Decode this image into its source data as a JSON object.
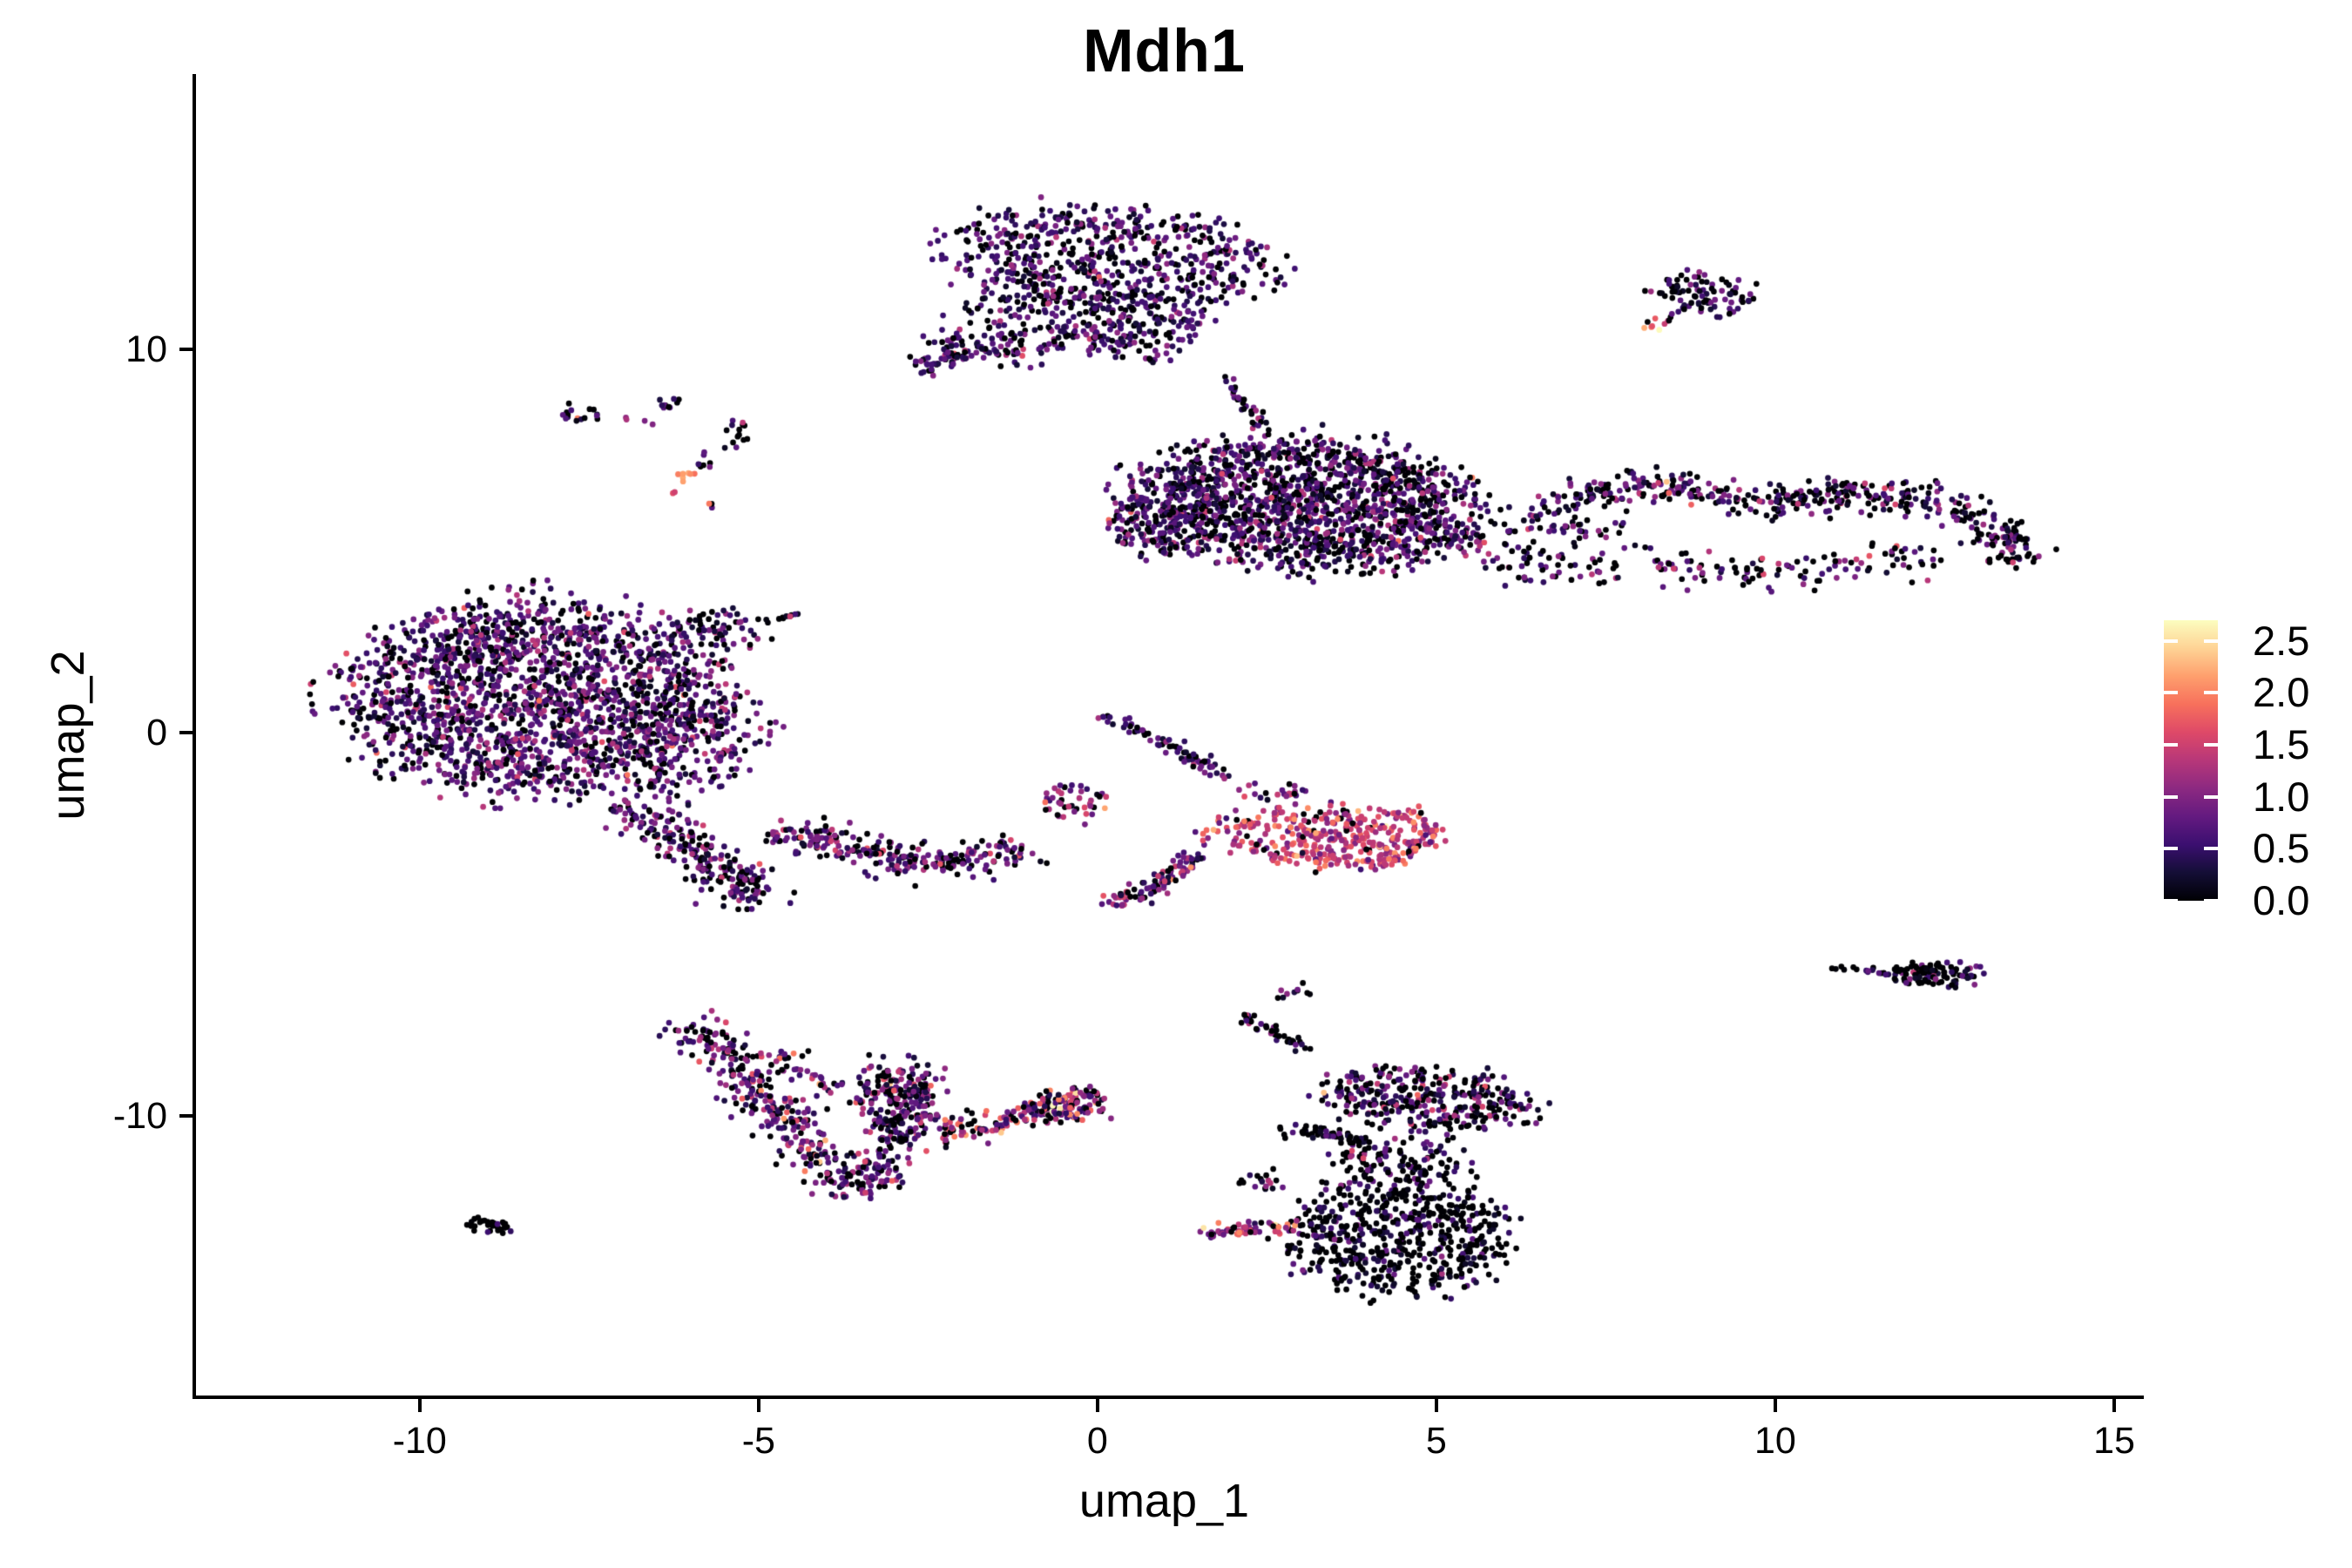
{
  "chart_data": {
    "type": "scatter",
    "title": "Mdh1",
    "xlabel": "umap_1",
    "ylabel": "umap_2",
    "xlim": [
      -13.3,
      15.27
    ],
    "ylim": [
      -17.3,
      17.18
    ],
    "xticks": [
      -10,
      -5,
      0,
      5,
      10,
      15
    ],
    "yticks": [
      -10,
      0,
      10
    ],
    "grid": false,
    "point_radius_px": 3.35,
    "legend": {
      "position": "right",
      "ticks": [
        0.0,
        0.5,
        1.0,
        1.5,
        2.0,
        2.5
      ],
      "vmin": 0.0,
      "vmax": 2.7,
      "colormap": "magma",
      "colormap_stops": [
        "#000004",
        "#140e36",
        "#3b0f70",
        "#641a80",
        "#8c2981",
        "#b73779",
        "#de4968",
        "#f7705c",
        "#fe9f6d",
        "#fed395",
        "#fcfdbf"
      ]
    },
    "axis_color": "#000000",
    "background_color": "#ffffff",
    "clusters": [
      {
        "id": "top-center-core",
        "kind": "blob",
        "cx": 0.2,
        "cy": 12.35,
        "rx": 2.35,
        "ry": 1.35,
        "rot": -8,
        "n": 620,
        "expr": {
          "zero": 0.22,
          "mean": 0.55,
          "sd": 0.38
        }
      },
      {
        "id": "top-center-lower-west",
        "kind": "blob",
        "cx": -0.95,
        "cy": 10.65,
        "rx": 1.55,
        "ry": 0.95,
        "rot": 18,
        "n": 210,
        "expr": {
          "zero": 0.22,
          "mean": 0.55,
          "sd": 0.38
        }
      },
      {
        "id": "top-center-lower-east",
        "kind": "blob",
        "cx": 0.65,
        "cy": 10.35,
        "rx": 0.95,
        "ry": 0.65,
        "rot": 0,
        "n": 100,
        "expr": {
          "zero": 0.22,
          "mean": 0.55,
          "sd": 0.38
        }
      },
      {
        "id": "top-center-tail",
        "kind": "band",
        "pts": [
          [
            -2.65,
            9.55
          ],
          [
            -1.7,
            10.05
          ]
        ],
        "w": 0.3,
        "n": 55,
        "expr": {
          "zero": 0.25,
          "mean": 0.55,
          "sd": 0.4
        }
      },
      {
        "id": "top-center-east-dots",
        "kind": "band",
        "pts": [
          [
            1.1,
            10.9
          ],
          [
            1.65,
            10.75
          ]
        ],
        "w": 0.25,
        "n": 10,
        "expr": {
          "zero": 0.25,
          "mean": 0.55,
          "sd": 0.4
        }
      },
      {
        "id": "top-right-small",
        "kind": "blob",
        "cx": 8.95,
        "cy": 11.5,
        "rx": 0.8,
        "ry": 0.5,
        "rot": -18,
        "n": 85,
        "expr": {
          "zero": 0.3,
          "mean": 0.5,
          "sd": 0.4
        }
      },
      {
        "id": "top-right-small-tail",
        "kind": "band",
        "pts": [
          [
            8.15,
            10.5
          ],
          [
            8.6,
            11.05
          ]
        ],
        "w": 0.15,
        "n": 12,
        "expr": {
          "zero": 0.2,
          "mean": 0.9,
          "sd": 0.8
        }
      },
      {
        "id": "right-island-core",
        "kind": "blob",
        "cx": 3.1,
        "cy": 5.95,
        "rx": 2.45,
        "ry": 1.7,
        "rot": -10,
        "n": 1500,
        "expr": {
          "zero": 0.24,
          "mean": 0.6,
          "sd": 0.4
        }
      },
      {
        "id": "right-island-west-lobe",
        "kind": "blob",
        "cx": 0.95,
        "cy": 5.6,
        "rx": 0.85,
        "ry": 1.05,
        "rot": 0,
        "n": 170,
        "expr": {
          "zero": 0.24,
          "mean": 0.6,
          "sd": 0.4
        }
      },
      {
        "id": "right-island-top-streak",
        "kind": "band",
        "pts": [
          [
            1.85,
            9.35
          ],
          [
            2.5,
            7.9
          ]
        ],
        "w": 0.15,
        "n": 30,
        "expr": {
          "zero": 0.25,
          "mean": 0.6,
          "sd": 0.4
        }
      },
      {
        "id": "right-island-east-sparse",
        "kind": "blob",
        "cx": 6.6,
        "cy": 4.9,
        "rx": 1.35,
        "ry": 1.15,
        "rot": 0,
        "n": 150,
        "expr": {
          "zero": 0.28,
          "mean": 0.62,
          "sd": 0.45
        }
      },
      {
        "id": "right-arm",
        "kind": "band",
        "pts": [
          [
            6.9,
            6.15
          ],
          [
            8.3,
            6.5
          ],
          [
            9.8,
            5.9
          ],
          [
            11.2,
            6.25
          ],
          [
            12.5,
            6.0
          ],
          [
            13.45,
            5.15
          ],
          [
            13.55,
            4.35
          ]
        ],
        "w": 0.4,
        "n": 430,
        "expr": {
          "zero": 0.32,
          "mean": 0.55,
          "sd": 0.45
        }
      },
      {
        "id": "right-arm-lower",
        "kind": "band",
        "pts": [
          [
            8.2,
            4.4
          ],
          [
            9.8,
            4.1
          ],
          [
            11.3,
            4.5
          ],
          [
            12.6,
            4.55
          ]
        ],
        "w": 0.45,
        "n": 110,
        "expr": {
          "zero": 0.3,
          "mean": 0.65,
          "sd": 0.5
        }
      },
      {
        "id": "left-island-core",
        "kind": "blob",
        "cx": -8.35,
        "cy": 0.95,
        "rx": 2.7,
        "ry": 2.45,
        "rot": 5,
        "n": 1850,
        "expr": {
          "zero": 0.18,
          "mean": 0.66,
          "sd": 0.42
        }
      },
      {
        "id": "left-island-se-shoulder",
        "kind": "blob",
        "cx": -5.95,
        "cy": -0.3,
        "rx": 1.05,
        "ry": 1.35,
        "rot": -20,
        "n": 200,
        "expr": {
          "zero": 0.18,
          "mean": 0.66,
          "sd": 0.42
        }
      },
      {
        "id": "left-island-ne-spur",
        "kind": "blob",
        "cx": -5.55,
        "cy": 2.65,
        "rx": 0.85,
        "ry": 0.6,
        "rot": -15,
        "n": 60,
        "expr": {
          "zero": 0.25,
          "mean": 0.6,
          "sd": 0.4
        }
      },
      {
        "id": "left-island-ne-dots",
        "kind": "band",
        "pts": [
          [
            -4.95,
            2.85
          ],
          [
            -4.4,
            3.15
          ]
        ],
        "w": 0.12,
        "n": 10,
        "expr": {
          "zero": 0.25,
          "mean": 0.6,
          "sd": 0.4
        }
      },
      {
        "id": "left-island-tail",
        "kind": "band",
        "pts": [
          [
            -7.0,
            -1.7
          ],
          [
            -6.2,
            -2.7
          ],
          [
            -5.5,
            -3.6
          ],
          [
            -5.0,
            -4.45
          ]
        ],
        "w": 0.5,
        "n": 240,
        "expr": {
          "zero": 0.22,
          "mean": 0.65,
          "sd": 0.48
        }
      },
      {
        "id": "mid-band",
        "kind": "band",
        "pts": [
          [
            -4.8,
            -2.6
          ],
          [
            -3.8,
            -2.95
          ],
          [
            -2.8,
            -3.3
          ],
          [
            -1.85,
            -3.4
          ],
          [
            -1.15,
            -3.0
          ]
        ],
        "w": 0.4,
        "n": 250,
        "expr": {
          "zero": 0.2,
          "mean": 0.72,
          "sd": 0.46
        }
      },
      {
        "id": "mid-band-east-clump",
        "kind": "blob",
        "cx": -0.35,
        "cy": -1.8,
        "rx": 0.55,
        "ry": 0.5,
        "rot": 0,
        "n": 42,
        "expr": {
          "zero": 0.12,
          "mean": 0.95,
          "sd": 0.5
        }
      },
      {
        "id": "center-streak-upper",
        "kind": "band",
        "pts": [
          [
            0.1,
            0.55
          ],
          [
            0.9,
            -0.25
          ],
          [
            1.5,
            -0.8
          ],
          [
            1.95,
            -1.1
          ]
        ],
        "w": 0.15,
        "n": 75,
        "expr": {
          "zero": 0.3,
          "mean": 0.55,
          "sd": 0.45
        }
      },
      {
        "id": "center-streak-lower",
        "kind": "band",
        "pts": [
          [
            0.15,
            -4.45
          ],
          [
            0.7,
            -4.1
          ],
          [
            1.15,
            -3.6
          ],
          [
            1.5,
            -3.2
          ]
        ],
        "w": 0.22,
        "n": 95,
        "expr": {
          "zero": 0.18,
          "mean": 0.85,
          "sd": 0.5
        }
      },
      {
        "id": "pink-cluster",
        "kind": "blob",
        "cx": 3.3,
        "cy": -2.7,
        "rx": 1.6,
        "ry": 0.8,
        "rot": -6,
        "n": 330,
        "expr": {
          "zero": 0.05,
          "mean": 1.45,
          "sd": 0.38
        }
      },
      {
        "id": "pink-cluster-hook",
        "kind": "band",
        "pts": [
          [
            4.55,
            -2.05
          ],
          [
            4.95,
            -2.6
          ],
          [
            4.6,
            -3.2
          ],
          [
            4.0,
            -3.5
          ]
        ],
        "w": 0.18,
        "n": 60,
        "expr": {
          "zero": 0.04,
          "mean": 1.5,
          "sd": 0.35
        }
      },
      {
        "id": "pink-cluster-top-dots",
        "kind": "band",
        "pts": [
          [
            2.15,
            -1.6
          ],
          [
            3.0,
            -1.5
          ]
        ],
        "w": 0.18,
        "n": 22,
        "expr": {
          "zero": 0.1,
          "mean": 1.1,
          "sd": 0.5
        }
      },
      {
        "id": "right-small-cluster",
        "kind": "blob",
        "cx": 12.35,
        "cy": -6.3,
        "rx": 0.72,
        "ry": 0.34,
        "rot": 0,
        "n": 100,
        "expr": {
          "zero": 0.55,
          "mean": 0.4,
          "sd": 0.38
        }
      },
      {
        "id": "right-small-tail-dots",
        "kind": "band",
        "pts": [
          [
            10.85,
            -6.15
          ],
          [
            11.6,
            -6.2
          ]
        ],
        "w": 0.07,
        "n": 12,
        "expr": {
          "zero": 0.5,
          "mean": 0.5,
          "sd": 0.4
        }
      },
      {
        "id": "bottom-left-arc-west",
        "kind": "band",
        "pts": [
          [
            -6.1,
            -7.45
          ],
          [
            -5.65,
            -8.3
          ],
          [
            -5.1,
            -9.2
          ],
          [
            -4.55,
            -10.3
          ],
          [
            -4.0,
            -11.3
          ],
          [
            -3.6,
            -12.05
          ]
        ],
        "w": 0.4,
        "n": 300,
        "expr": {
          "zero": 0.2,
          "mean": 0.75,
          "sd": 0.5
        }
      },
      {
        "id": "bottom-left-arc-east",
        "kind": "band",
        "pts": [
          [
            -3.6,
            -12.05
          ],
          [
            -3.1,
            -11.2
          ],
          [
            -2.85,
            -10.3
          ],
          [
            -2.7,
            -9.3
          ],
          [
            -2.7,
            -8.65
          ]
        ],
        "w": 0.42,
        "n": 190,
        "expr": {
          "zero": 0.2,
          "mean": 0.75,
          "sd": 0.5
        }
      },
      {
        "id": "bottom-left-lobe",
        "kind": "blob",
        "cx": -3.05,
        "cy": -9.6,
        "rx": 0.55,
        "ry": 0.95,
        "rot": 10,
        "n": 130,
        "expr": {
          "zero": 0.22,
          "mean": 0.72,
          "sd": 0.5
        }
      },
      {
        "id": "bottom-left-inner-dots",
        "kind": "band",
        "pts": [
          [
            -5.0,
            -8.35
          ],
          [
            -4.3,
            -8.85
          ],
          [
            -3.85,
            -9.3
          ]
        ],
        "w": 0.25,
        "n": 40,
        "expr": {
          "zero": 0.15,
          "mean": 0.9,
          "sd": 0.55
        }
      },
      {
        "id": "bottom-center-streak",
        "kind": "band",
        "pts": [
          [
            -2.4,
            -10.5
          ],
          [
            -1.8,
            -10.3
          ],
          [
            -1.1,
            -10.0
          ],
          [
            -0.5,
            -9.6
          ],
          [
            -0.05,
            -9.4
          ]
        ],
        "w": 0.32,
        "n": 150,
        "expr": {
          "zero": 0.16,
          "mean": 1.1,
          "sd": 0.72
        }
      },
      {
        "id": "bottom-center-clump",
        "kind": "blob",
        "cx": -0.3,
        "cy": -9.75,
        "rx": 0.5,
        "ry": 0.48,
        "rot": 0,
        "n": 75,
        "expr": {
          "zero": 0.16,
          "mean": 1.1,
          "sd": 0.72
        }
      },
      {
        "id": "bottom-center-west-dots",
        "kind": "band",
        "pts": [
          [
            -3.2,
            -10.65
          ],
          [
            -2.75,
            -10.6
          ]
        ],
        "w": 0.06,
        "n": 7,
        "expr": {
          "zero": 0.5,
          "mean": 0.35,
          "sd": 0.3
        }
      },
      {
        "id": "bottom-right-upper-lobe",
        "kind": "blob",
        "cx": 4.9,
        "cy": -9.55,
        "rx": 1.55,
        "ry": 0.8,
        "rot": -8,
        "n": 330,
        "expr": {
          "zero": 0.3,
          "mean": 0.62,
          "sd": 0.5
        }
      },
      {
        "id": "bottom-right-neck",
        "kind": "blob",
        "cx": 4.4,
        "cy": -11.1,
        "rx": 1.0,
        "ry": 0.65,
        "rot": 0,
        "n": 110,
        "expr": {
          "zero": 0.42,
          "mean": 0.5,
          "sd": 0.42
        }
      },
      {
        "id": "bottom-right-main",
        "kind": "blob",
        "cx": 4.45,
        "cy": -13.1,
        "rx": 1.6,
        "ry": 1.55,
        "rot": 0,
        "n": 580,
        "expr": {
          "zero": 0.55,
          "mean": 0.35,
          "sd": 0.35
        }
      },
      {
        "id": "bottom-right-pink-arm",
        "kind": "band",
        "pts": [
          [
            1.55,
            -13.1
          ],
          [
            2.2,
            -12.95
          ],
          [
            2.9,
            -12.85
          ]
        ],
        "w": 0.2,
        "n": 55,
        "expr": {
          "zero": 0.12,
          "mean": 1.2,
          "sd": 0.6
        }
      },
      {
        "id": "bottom-right-top-streak",
        "kind": "band",
        "pts": [
          [
            2.15,
            -7.4
          ],
          [
            2.6,
            -7.85
          ],
          [
            3.1,
            -8.3
          ]
        ],
        "w": 0.15,
        "n": 38,
        "expr": {
          "zero": 0.35,
          "mean": 0.6,
          "sd": 0.5
        }
      },
      {
        "id": "bottom-right-top-clump",
        "kind": "blob",
        "cx": 2.9,
        "cy": -6.75,
        "rx": 0.28,
        "ry": 0.2,
        "rot": 0,
        "n": 10,
        "expr": {
          "zero": 0.4,
          "mean": 0.5,
          "sd": 0.35
        }
      },
      {
        "id": "bottom-right-dark-streak",
        "kind": "band",
        "pts": [
          [
            2.6,
            -10.35
          ],
          [
            3.3,
            -10.45
          ],
          [
            3.95,
            -10.65
          ]
        ],
        "w": 0.16,
        "n": 48,
        "expr": {
          "zero": 0.5,
          "mean": 0.4,
          "sd": 0.35
        }
      },
      {
        "id": "bottom-right-west-dots",
        "kind": "band",
        "pts": [
          [
            2.05,
            -11.55
          ],
          [
            2.6,
            -11.95
          ]
        ],
        "w": 0.3,
        "n": 18,
        "expr": {
          "zero": 0.4,
          "mean": 0.5,
          "sd": 0.4
        }
      },
      {
        "id": "tiny-black-clump",
        "kind": "blob",
        "cx": -9.0,
        "cy": -12.85,
        "rx": 0.38,
        "ry": 0.18,
        "rot": -12,
        "n": 32,
        "expr": {
          "zero": 0.85,
          "mean": 0.2,
          "sd": 0.25
        }
      },
      {
        "id": "nw-sparse-1",
        "kind": "blob",
        "cx": -7.65,
        "cy": 8.3,
        "rx": 0.32,
        "ry": 0.25,
        "rot": -30,
        "n": 16,
        "expr": {
          "zero": 0.3,
          "mean": 0.6,
          "sd": 0.5
        }
      },
      {
        "id": "nw-sparse-dots",
        "kind": "band",
        "pts": [
          [
            -7.0,
            8.25
          ],
          [
            -6.6,
            8.0
          ]
        ],
        "w": 0.06,
        "n": 4,
        "expr": {
          "zero": 0.1,
          "mean": 0.95,
          "sd": 0.4
        }
      },
      {
        "id": "nw-sparse-2",
        "kind": "blob",
        "cx": -6.35,
        "cy": 8.6,
        "rx": 0.22,
        "ry": 0.18,
        "rot": 0,
        "n": 10,
        "expr": {
          "zero": 0.35,
          "mean": 0.55,
          "sd": 0.45
        }
      },
      {
        "id": "nw-sparse-3",
        "kind": "blob",
        "cx": -5.35,
        "cy": 7.8,
        "rx": 0.3,
        "ry": 0.4,
        "rot": 0,
        "n": 14,
        "expr": {
          "zero": 0.4,
          "mean": 0.5,
          "sd": 0.45
        }
      },
      {
        "id": "nw-sparse-4",
        "kind": "blob",
        "cx": -5.8,
        "cy": 7.1,
        "rx": 0.18,
        "ry": 0.2,
        "rot": 0,
        "n": 8,
        "expr": {
          "zero": 0.3,
          "mean": 0.6,
          "sd": 0.4
        }
      },
      {
        "id": "nw-bright-clump",
        "kind": "blob",
        "cx": -6.1,
        "cy": 6.65,
        "rx": 0.18,
        "ry": 0.2,
        "rot": 0,
        "n": 7,
        "expr": {
          "zero": 0.0,
          "mean": 2.25,
          "sd": 0.35
        }
      },
      {
        "id": "nw-pink-dot",
        "kind": "band",
        "pts": [
          [
            -6.3,
            6.3
          ],
          [
            -6.25,
            6.25
          ]
        ],
        "w": 0.03,
        "n": 2,
        "expr": {
          "zero": 0.0,
          "mean": 1.6,
          "sd": 0.2
        }
      },
      {
        "id": "nw-trail-dots",
        "kind": "band",
        "pts": [
          [
            -5.75,
            5.95
          ],
          [
            -5.6,
            5.8
          ]
        ],
        "w": 0.05,
        "n": 3,
        "expr": {
          "zero": 0.2,
          "mean": 0.7,
          "sd": 0.4
        }
      }
    ]
  }
}
